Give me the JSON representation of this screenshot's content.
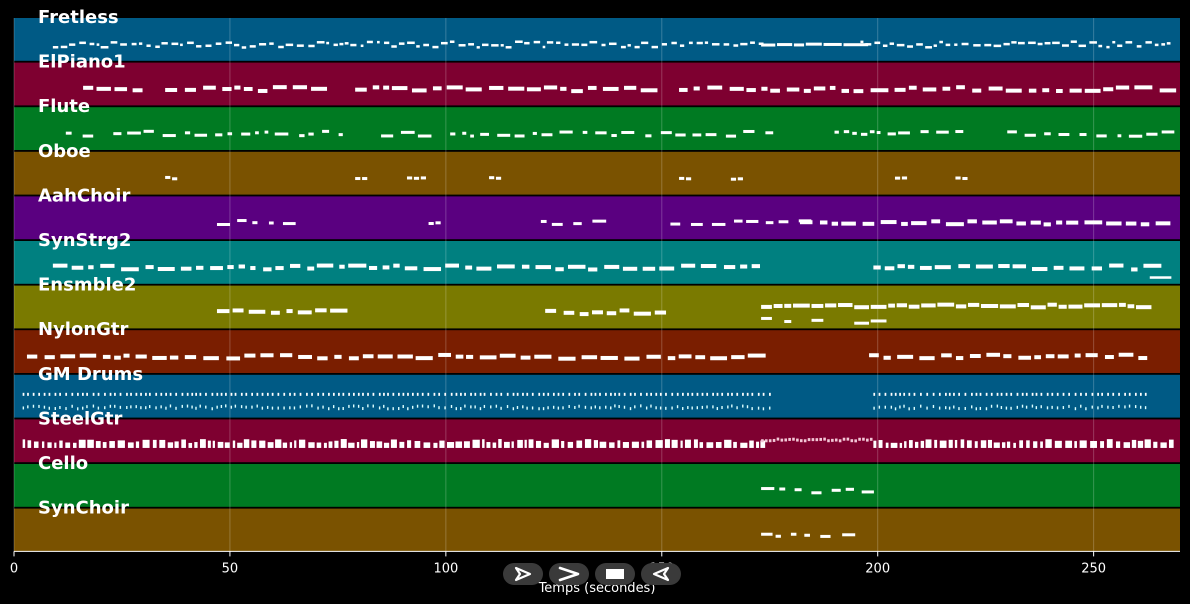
{
  "x_axis": {
    "label": "Temps (secondes)",
    "ticks": [
      "0",
      "50",
      "100",
      "150",
      "200",
      "250"
    ],
    "max_seconds": 270
  },
  "tracks": [
    {
      "name": "Fretless",
      "color": "#005a85",
      "seed": 1,
      "spans": [
        [
          9,
          173,
          "dense"
        ],
        [
          173,
          195,
          "med"
        ],
        [
          196,
          268,
          "dense"
        ]
      ]
    },
    {
      "name": "ElPiano1",
      "color": "#7e0030",
      "seed": 2,
      "spans": [
        [
          16,
          28,
          "dash"
        ],
        [
          35,
          74,
          "dash"
        ],
        [
          79,
          150,
          "dash"
        ],
        [
          154,
          268,
          "dash"
        ]
      ]
    },
    {
      "name": "Flute",
      "color": "#007a22",
      "seed": 3,
      "spans": [
        [
          12,
          19,
          "sparse"
        ],
        [
          23,
          27,
          "sparse"
        ],
        [
          30,
          78,
          "sparse"
        ],
        [
          85,
          95,
          "sparse"
        ],
        [
          101,
          174,
          "sparse"
        ],
        [
          190,
          222,
          "sparse"
        ],
        [
          230,
          268,
          "sparse"
        ]
      ]
    },
    {
      "name": "Oboe",
      "color": "#7a5200",
      "seed": 4,
      "spans": [
        [
          35,
          37,
          "blip"
        ],
        [
          79,
          82,
          "blip"
        ],
        [
          91,
          95,
          "blip"
        ],
        [
          110,
          112,
          "blip"
        ],
        [
          154,
          157,
          "blip"
        ],
        [
          166,
          169,
          "blip"
        ],
        [
          204,
          207,
          "blip"
        ],
        [
          218,
          221,
          "blip"
        ]
      ]
    },
    {
      "name": "AahChoir",
      "color": "#5a0080",
      "seed": 5,
      "spans": [
        [
          47,
          63,
          "sparse"
        ],
        [
          96,
          99,
          "blip"
        ],
        [
          122,
          139,
          "sparse"
        ],
        [
          152,
          182,
          "sparse"
        ],
        [
          182,
          268,
          "dash"
        ]
      ]
    },
    {
      "name": "SynStrg2",
      "color": "#008080",
      "seed": 6,
      "spans": [
        [
          9,
          173,
          "dash"
        ],
        [
          199,
          262,
          "dash"
        ],
        [
          263,
          268,
          "low"
        ]
      ]
    },
    {
      "name": "Ensmble2",
      "color": "#7a7a00",
      "seed": 7,
      "spans": [
        [
          47,
          75,
          "dash"
        ],
        [
          123,
          150,
          "dash"
        ],
        [
          173,
          262,
          "chord"
        ]
      ]
    },
    {
      "name": "NylonGtr",
      "color": "#7a1e00",
      "seed": 8,
      "spans": [
        [
          3,
          173,
          "dash"
        ],
        [
          198,
          263,
          "dash"
        ]
      ]
    },
    {
      "name": "GM Drums",
      "color": "#005a85",
      "seed": 9,
      "spans": [
        [
          2,
          175,
          "drum"
        ],
        [
          199,
          263,
          "drum"
        ]
      ]
    },
    {
      "name": "SteelGtr",
      "color": "#7e0030",
      "seed": 10,
      "spans": [
        [
          2,
          173,
          "thick"
        ],
        [
          173,
          199,
          "pinkish"
        ],
        [
          199,
          268,
          "thick"
        ]
      ]
    },
    {
      "name": "Cello",
      "color": "#007a22",
      "seed": 11,
      "spans": [
        [
          173,
          198,
          "sparse"
        ]
      ]
    },
    {
      "name": "SynChoir",
      "color": "#7a5200",
      "seed": 12,
      "spans": [
        [
          173,
          192,
          "sparse"
        ]
      ]
    }
  ],
  "controls": [
    {
      "id": "play",
      "icon": "play-icon"
    },
    {
      "id": "next",
      "icon": "chevron-right-icon"
    },
    {
      "id": "stop",
      "icon": "stop-icon"
    },
    {
      "id": "rewind",
      "icon": "rewind-icon"
    }
  ]
}
